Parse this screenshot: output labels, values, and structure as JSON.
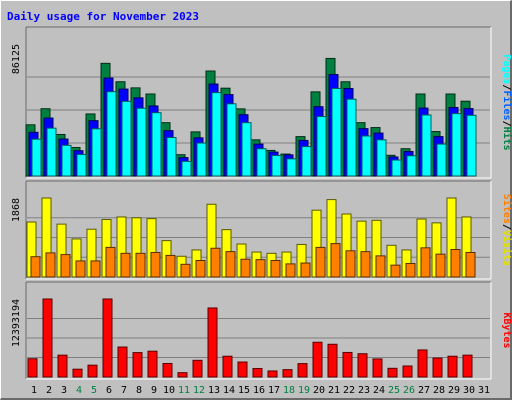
{
  "chart_data": {
    "type": "bar",
    "title": "Daily usage for November 2023",
    "categories": [
      "1",
      "2",
      "3",
      "4",
      "5",
      "6",
      "7",
      "8",
      "9",
      "10",
      "11",
      "12",
      "13",
      "14",
      "15",
      "16",
      "17",
      "18",
      "19",
      "20",
      "21",
      "22",
      "23",
      "24",
      "25",
      "26",
      "27",
      "28",
      "29",
      "30",
      "31"
    ],
    "weekend_days": [
      4,
      5,
      11,
      12,
      18,
      19,
      25,
      26
    ],
    "panels": [
      {
        "id": "requests",
        "max_label": "86125",
        "ymax": 86125,
        "axis_label_parts": [
          "Pages",
          "Files",
          "Hits"
        ],
        "series": [
          {
            "name": "Hits",
            "color": "#008040",
            "values": [
              33400,
              43900,
              27100,
              18600,
              40500,
              73500,
              61500,
              57500,
              53500,
              34800,
              13900,
              28800,
              68500,
              57300,
              43800,
              23600,
              16700,
              14300,
              25700,
              54900,
              76700,
              61500,
              34800,
              31600,
              13500,
              17800,
              53500,
              29000,
              53500,
              48800,
              0
            ]
          },
          {
            "name": "Files",
            "color": "#0000ff",
            "values": [
              28500,
              37800,
              24100,
              16500,
              36100,
              63900,
              56700,
              51000,
              45700,
              29600,
              12000,
              24900,
              60000,
              53100,
              40000,
              20800,
              15600,
              13800,
              23200,
              45200,
              66200,
              57100,
              30900,
              28000,
              12400,
              16000,
              44300,
              25700,
              44700,
              44000,
              0
            ]
          },
          {
            "name": "Pages",
            "color": "#00ffff",
            "values": [
              24000,
              31200,
              20000,
              14000,
              30800,
              55000,
              48700,
              44200,
              41300,
              25100,
              9500,
              21500,
              54400,
              47100,
              34800,
              17800,
              13400,
              11200,
              19200,
              38800,
              57100,
              50100,
              26100,
              23600,
              10400,
              13200,
              39800,
              20800,
              40700,
              39600,
              0
            ]
          }
        ]
      },
      {
        "id": "visits",
        "max_label": "1868",
        "ymax": 1868,
        "axis_label_parts": [
          "Sites",
          "Visits"
        ],
        "series": [
          {
            "name": "Visits",
            "color": "#ffff00",
            "values": [
              1300,
              1868,
              1250,
              900,
              1130,
              1360,
              1420,
              1400,
              1380,
              860,
              490,
              640,
              1720,
              1120,
              780,
              590,
              560,
              590,
              770,
              1580,
              1830,
              1490,
              1320,
              1340,
              750,
              640,
              1370,
              1280,
              1868,
              1420,
              0
            ]
          },
          {
            "name": "Sites",
            "color": "#ff8000",
            "values": [
              480,
              570,
              530,
              380,
              380,
              700,
              560,
              560,
              580,
              510,
              300,
              390,
              680,
              600,
              420,
              410,
              390,
              310,
              330,
              700,
              790,
              620,
              600,
              500,
              280,
              320,
              690,
              540,
              650,
              580,
              0
            ]
          }
        ]
      },
      {
        "id": "kbytes",
        "max_label": "12393194",
        "ymax": 12393194,
        "axis_label_parts": [
          "KBytes"
        ],
        "series": [
          {
            "name": "KBytes",
            "color": "#ff0000",
            "values": [
              2900000,
              12393194,
              3470000,
              1240000,
              1880000,
              12393194,
              4760000,
              3880000,
              4100000,
              2150000,
              690000,
              2650000,
              10970000,
              3300000,
              2380000,
              1350000,
              960000,
              1170000,
              2130000,
              5520000,
              5200000,
              3900000,
              3700000,
              2870000,
              1380000,
              1750000,
              4300000,
              3010000,
              3300000,
              3470000,
              0
            ]
          }
        ]
      }
    ]
  }
}
